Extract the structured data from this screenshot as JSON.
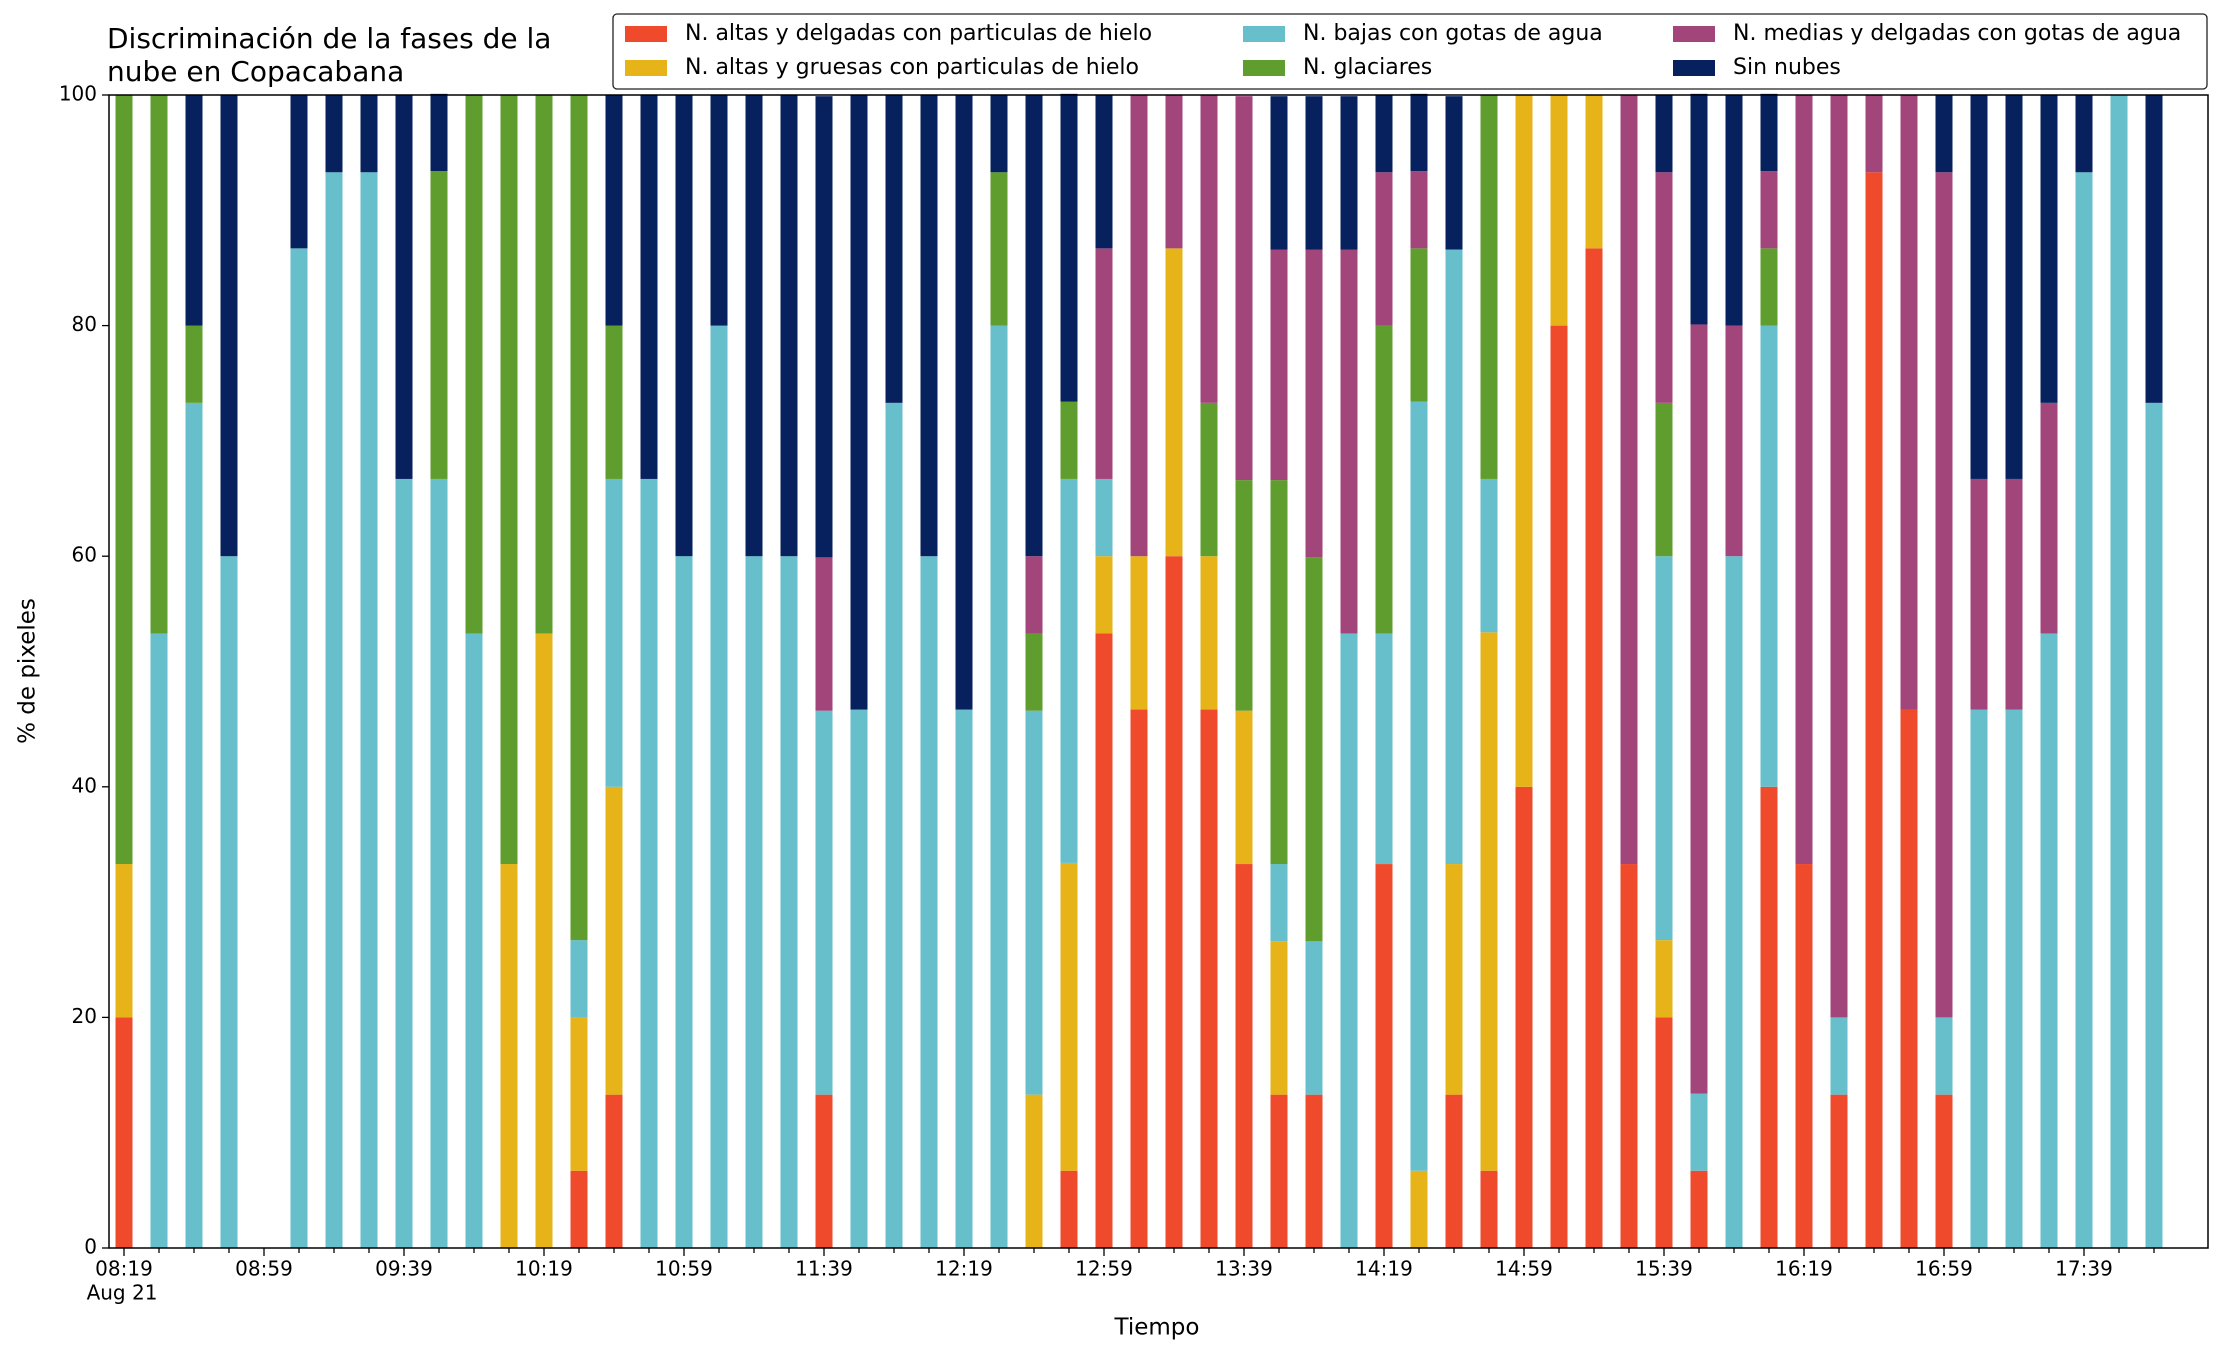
{
  "chart_data": {
    "type": "stacked_bar",
    "title": "Discriminación de la fases de la\nnube en Copacabana",
    "x_label": "Tiempo",
    "y_label": "% de pixeles",
    "x_date_label": "Aug 21",
    "categories": [
      "08:19",
      null,
      null,
      null,
      "08:59",
      null,
      null,
      null,
      "09:39",
      null,
      null,
      null,
      "10:19",
      null,
      null,
      null,
      "10:59",
      null,
      null,
      null,
      "11:39",
      null,
      null,
      null,
      "12:19",
      null,
      null,
      null,
      "12:59",
      null,
      null,
      null,
      "13:39",
      null,
      null,
      null,
      "14:19",
      null,
      null,
      null,
      "14:59",
      null,
      null,
      null,
      "15:39",
      null,
      null,
      null,
      "16:19",
      null,
      null,
      null,
      "16:59",
      null,
      null,
      null,
      "17:39",
      null,
      null
    ],
    "ylim": [
      0,
      100
    ],
    "yticks": [
      0,
      20,
      40,
      60,
      80,
      100
    ],
    "series": [
      {
        "name": "N. altas y delgadas con particulas de hielo",
        "color": "#ee4a2b",
        "values": [
          20,
          0,
          0,
          0,
          0,
          0,
          0,
          0,
          0,
          0,
          0,
          0,
          0,
          6.7,
          13.3,
          0,
          0,
          0,
          0,
          0,
          13.3,
          0,
          0,
          0,
          0,
          0,
          0,
          6.7,
          53.3,
          46.7,
          60,
          46.7,
          33.3,
          13.3,
          13.3,
          0,
          33.3,
          0,
          13.3,
          6.7,
          40,
          80,
          86.7,
          33.3,
          20,
          6.7,
          0,
          40,
          33.3,
          13.3,
          93.3,
          46.7,
          13.3,
          0,
          0,
          0,
          0,
          0,
          0
        ]
      },
      {
        "name": "N. altas y gruesas con particulas de hielo",
        "color": "#e6b418",
        "values": [
          13.3,
          0,
          0,
          0,
          0,
          0,
          0,
          0,
          0,
          0,
          0,
          33.3,
          53.3,
          13.3,
          26.7,
          0,
          0,
          0,
          0,
          0,
          0,
          0,
          0,
          0,
          0,
          0,
          13.3,
          26.7,
          6.7,
          13.3,
          26.7,
          13.3,
          13.3,
          13.3,
          0,
          0,
          0,
          6.7,
          20,
          46.7,
          60,
          20,
          13.3,
          0,
          6.7,
          0,
          0,
          0,
          0,
          0,
          0,
          0,
          0,
          0,
          0,
          0,
          0,
          0,
          0
        ]
      },
      {
        "name": "N. bajas con gotas de agua",
        "color": "#66bfcb",
        "values": [
          0,
          53.3,
          73.3,
          60,
          0,
          86.7,
          93.3,
          93.3,
          66.7,
          66.7,
          53.3,
          0,
          0,
          6.7,
          26.7,
          66.7,
          60,
          80,
          60,
          60,
          33.3,
          46.7,
          73.3,
          60,
          46.7,
          80,
          33.3,
          33.3,
          6.7,
          0,
          0,
          0,
          0,
          6.7,
          13.3,
          53.3,
          20,
          66.7,
          53.3,
          13.3,
          0,
          0,
          0,
          0,
          33.3,
          6.7,
          60,
          40,
          0,
          6.7,
          0,
          0,
          6.7,
          46.7,
          46.7,
          53.3,
          93.3,
          100,
          73.3
        ]
      },
      {
        "name": "N. glaciares",
        "color": "#5f9e2e",
        "values": [
          66.7,
          46.7,
          6.7,
          0,
          0,
          0,
          0,
          0,
          0,
          26.7,
          46.7,
          66.7,
          46.7,
          73.3,
          13.3,
          0,
          0,
          0,
          0,
          0,
          0,
          0,
          0,
          0,
          0,
          13.3,
          6.7,
          6.7,
          0,
          0,
          0,
          13.3,
          20,
          33.3,
          33.3,
          0,
          26.7,
          13.3,
          0,
          33.3,
          0,
          0,
          0,
          0,
          13.3,
          0,
          0,
          6.7,
          0,
          0,
          0,
          0,
          0,
          0,
          0,
          0,
          0,
          0,
          0
        ]
      },
      {
        "name": "N. medias y delgadas con gotas de agua",
        "color": "#a2457b",
        "values": [
          0,
          0,
          0,
          0,
          0,
          0,
          0,
          0,
          0,
          0,
          0,
          0,
          0,
          0,
          0,
          0,
          0,
          0,
          0,
          0,
          13.3,
          0,
          0,
          0,
          0,
          0,
          6.7,
          0,
          20,
          40,
          13.3,
          26.7,
          33.3,
          20,
          26.7,
          33.3,
          13.3,
          6.7,
          0,
          0,
          0,
          0,
          0,
          66.7,
          20,
          66.7,
          20,
          6.7,
          66.7,
          80,
          6.7,
          53.3,
          73.3,
          20,
          20,
          20,
          0,
          0,
          0
        ]
      },
      {
        "name": "Sin nubes",
        "color": "#06215e",
        "values": [
          0,
          0,
          20,
          40,
          0,
          13.3,
          6.7,
          6.7,
          33.3,
          6.7,
          0,
          0,
          0,
          0,
          20,
          33.3,
          40,
          20,
          40,
          40,
          40,
          53.3,
          26.7,
          40,
          53.3,
          6.7,
          40,
          26.7,
          13.3,
          0,
          0,
          0,
          0,
          13.3,
          13.3,
          13.3,
          6.7,
          6.7,
          13.3,
          0,
          0,
          0,
          0,
          0,
          6.7,
          20,
          20,
          6.7,
          0,
          0,
          0,
          0,
          6.7,
          33.3,
          33.3,
          26.7,
          6.7,
          0,
          26.7
        ]
      }
    ]
  }
}
